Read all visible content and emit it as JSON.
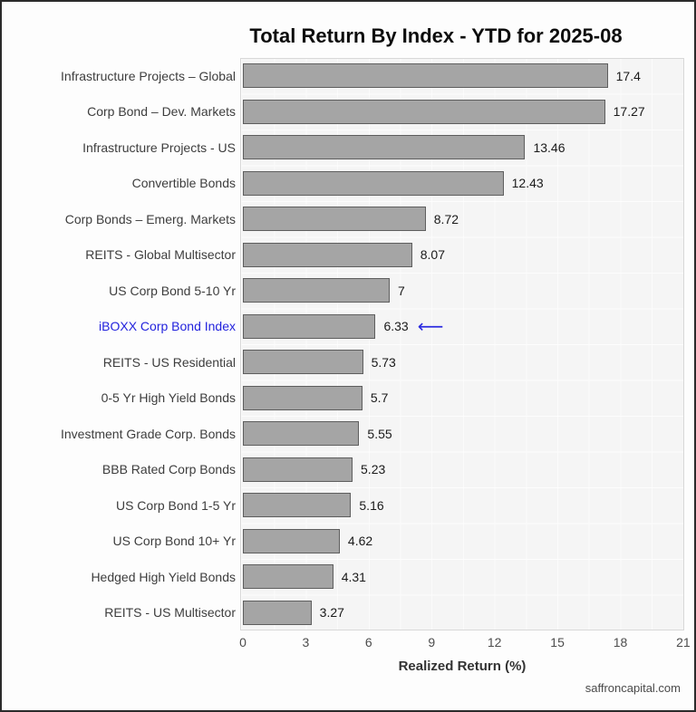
{
  "watermark": "saffroncapital.com",
  "colors": {
    "bar_fill": "#a5a5a5",
    "bar_border": "#5e5e5e",
    "highlight_text": "#2323dd",
    "arrow": "#2a2ae0"
  },
  "icons": {
    "highlight_arrow": "⟵"
  },
  "chart_data": {
    "type": "bar",
    "orientation": "horizontal",
    "title": "Total Return By Index - YTD for 2025-08",
    "xlabel": "Realized Return (%)",
    "ylabel": "",
    "xlim": [
      0,
      21
    ],
    "x_ticks": [
      0,
      3,
      6,
      9,
      12,
      15,
      18,
      21
    ],
    "grid": true,
    "legend": "none",
    "highlight_category": "iBOXX Corp Bond Index",
    "categories": [
      "Infrastructure Projects – Global",
      "Corp Bond – Dev. Markets",
      "Infrastructure Projects - US",
      "Convertible Bonds",
      "Corp Bonds – Emerg. Markets",
      "REITS - Global Multisector",
      "US Corp Bond 5-10 Yr",
      "iBOXX Corp Bond Index",
      "REITS - US Residential",
      "0-5 Yr High Yield Bonds",
      "Investment Grade Corp. Bonds",
      "BBB Rated Corp Bonds",
      "US Corp Bond 1-5 Yr",
      "US Corp Bond 10+ Yr",
      "Hedged High Yield Bonds",
      "REITS - US Multisector"
    ],
    "values": [
      17.4,
      17.27,
      13.46,
      12.43,
      8.72,
      8.07,
      7,
      6.33,
      5.73,
      5.7,
      5.55,
      5.23,
      5.16,
      4.62,
      4.31,
      3.27
    ],
    "value_labels": [
      "17.4",
      "17.27",
      "13.46",
      "12.43",
      "8.72",
      "8.07",
      "7",
      "6.33",
      "5.73",
      "5.7",
      "5.55",
      "5.23",
      "5.16",
      "4.62",
      "4.31",
      "3.27"
    ]
  }
}
